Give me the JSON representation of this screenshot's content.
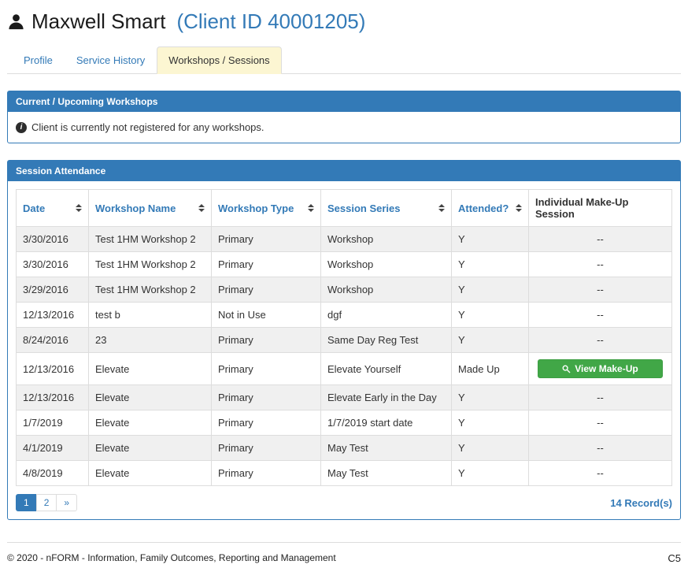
{
  "header": {
    "client_name": "Maxwell Smart",
    "client_id": "(Client ID 40001205)"
  },
  "tabs": [
    {
      "label": "Profile",
      "active": false
    },
    {
      "label": "Service History",
      "active": false
    },
    {
      "label": "Workshops / Sessions",
      "active": true
    }
  ],
  "workshops_panel": {
    "title": "Current / Upcoming Workshops",
    "message": "Client is currently not registered for any workshops."
  },
  "attendance_panel": {
    "title": "Session Attendance",
    "columns": [
      "Date",
      "Workshop Name",
      "Workshop Type",
      "Session Series",
      "Attended?",
      "Individual Make-Up Session"
    ],
    "rows": [
      {
        "date": "3/30/2016",
        "workshop_name": "Test 1HM Workshop 2",
        "workshop_type": "Primary",
        "session_series": "Workshop",
        "attended": "Y",
        "makeup": "--"
      },
      {
        "date": "3/30/2016",
        "workshop_name": "Test 1HM Workshop 2",
        "workshop_type": "Primary",
        "session_series": "Workshop",
        "attended": "Y",
        "makeup": "--"
      },
      {
        "date": "3/29/2016",
        "workshop_name": "Test 1HM Workshop 2",
        "workshop_type": "Primary",
        "session_series": "Workshop",
        "attended": "Y",
        "makeup": "--"
      },
      {
        "date": "12/13/2016",
        "workshop_name": "test b",
        "workshop_type": "Not in Use",
        "session_series": "dgf",
        "attended": "Y",
        "makeup": "--"
      },
      {
        "date": "8/24/2016",
        "workshop_name": "23",
        "workshop_type": "Primary",
        "session_series": "Same Day Reg Test",
        "attended": "Y",
        "makeup": "--"
      },
      {
        "date": "12/13/2016",
        "workshop_name": "Elevate",
        "workshop_type": "Primary",
        "session_series": "Elevate Yourself",
        "attended": "Made Up",
        "makeup_button": "View Make-Up"
      },
      {
        "date": "12/13/2016",
        "workshop_name": "Elevate",
        "workshop_type": "Primary",
        "session_series": "Elevate Early in the Day",
        "attended": "Y",
        "makeup": "--"
      },
      {
        "date": "1/7/2019",
        "workshop_name": "Elevate",
        "workshop_type": "Primary",
        "session_series": "1/7/2019 start date",
        "attended": "Y",
        "makeup": "--"
      },
      {
        "date": "4/1/2019",
        "workshop_name": "Elevate",
        "workshop_type": "Primary",
        "session_series": "May Test",
        "attended": "Y",
        "makeup": "--"
      },
      {
        "date": "4/8/2019",
        "workshop_name": "Elevate",
        "workshop_type": "Primary",
        "session_series": "May Test",
        "attended": "Y",
        "makeup": "--"
      }
    ],
    "pagination": [
      {
        "label": "1",
        "active": true
      },
      {
        "label": "2",
        "active": false
      },
      {
        "label": "»",
        "active": false
      }
    ],
    "record_count": "14 Record(s)"
  },
  "footer": {
    "copyright": "© 2020 - nFORM - Information, Family Outcomes, Reporting and Management",
    "version": "C5"
  },
  "colors": {
    "accent_blue": "#337ab7",
    "button_green": "#41a747",
    "active_tab_yellow": "#fcf6d2",
    "stripe_gray": "#f0f0f0"
  }
}
